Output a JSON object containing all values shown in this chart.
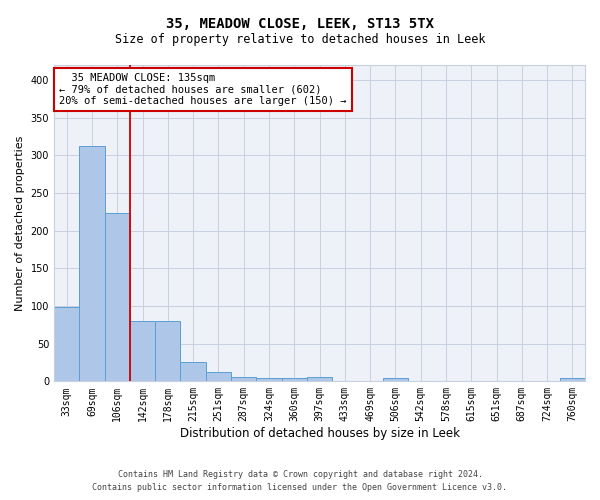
{
  "title": "35, MEADOW CLOSE, LEEK, ST13 5TX",
  "subtitle": "Size of property relative to detached houses in Leek",
  "xlabel": "Distribution of detached houses by size in Leek",
  "ylabel": "Number of detached properties",
  "footnote1": "Contains HM Land Registry data © Crown copyright and database right 2024.",
  "footnote2": "Contains public sector information licensed under the Open Government Licence v3.0.",
  "bar_labels": [
    "33sqm",
    "69sqm",
    "106sqm",
    "142sqm",
    "178sqm",
    "215sqm",
    "251sqm",
    "287sqm",
    "324sqm",
    "360sqm",
    "397sqm",
    "433sqm",
    "469sqm",
    "506sqm",
    "542sqm",
    "578sqm",
    "615sqm",
    "651sqm",
    "687sqm",
    "724sqm",
    "760sqm"
  ],
  "bar_values": [
    99,
    312,
    224,
    80,
    80,
    26,
    13,
    6,
    4,
    4,
    6,
    0,
    0,
    5,
    0,
    0,
    0,
    0,
    0,
    0,
    4
  ],
  "bar_color": "#aec6e8",
  "bar_edge_color": "#5a9fd4",
  "grid_color": "#c8d0e0",
  "background_color": "#eef2f8",
  "vline_color": "#cc0000",
  "annotation_text": "  35 MEADOW CLOSE: 135sqm\n← 79% of detached houses are smaller (602)\n20% of semi-detached houses are larger (150) →",
  "annotation_box_color": "#ffffff",
  "annotation_box_edge": "#cc0000",
  "ylim": [
    0,
    420
  ],
  "yticks": [
    0,
    50,
    100,
    150,
    200,
    250,
    300,
    350,
    400
  ],
  "title_fontsize": 10,
  "subtitle_fontsize": 8.5,
  "ylabel_fontsize": 8,
  "xlabel_fontsize": 8.5,
  "tick_fontsize": 7,
  "footnote_fontsize": 6,
  "annot_fontsize": 7.5
}
